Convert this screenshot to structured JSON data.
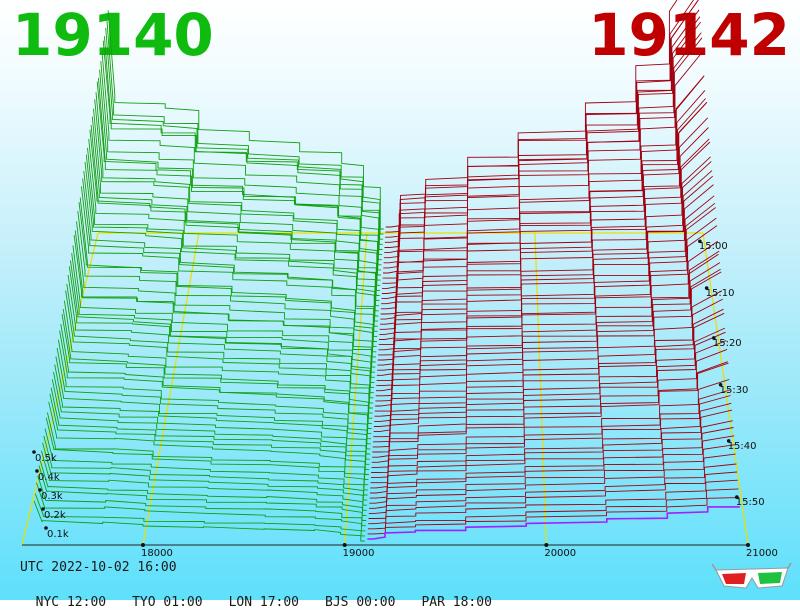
{
  "header": {
    "bid_price": "19140",
    "ask_price": "19142",
    "bid_color": "#10bb10",
    "ask_color": "#c00000"
  },
  "chart_data": {
    "type": "3d-order-book-depth",
    "x_ticks": [
      "18000",
      "19000",
      "20000",
      "21000"
    ],
    "x_range": [
      17400,
      21000
    ],
    "y_ticks": [
      "0.1k",
      "0.2k",
      "0.3k",
      "0.4k",
      "0.5k"
    ],
    "time_ticks": [
      "15:00",
      "15:10",
      "15:20",
      "15:30",
      "15:40",
      "15:50"
    ],
    "bid_color": "#10a010",
    "ask_color": "#a00010",
    "latest_ask_color": "#a020ff",
    "grid_color": "#e8e000",
    "bid_price": 19140,
    "ask_price": 19142
  },
  "footer": {
    "utc": "UTC 2022-10-02 16:00",
    "zones": [
      "NYC 12:00",
      "TYO 01:00",
      "LON 17:00",
      "BJS 00:00",
      "PAR 18:00"
    ]
  },
  "icons": {
    "glasses": "3d-glasses-icon"
  }
}
